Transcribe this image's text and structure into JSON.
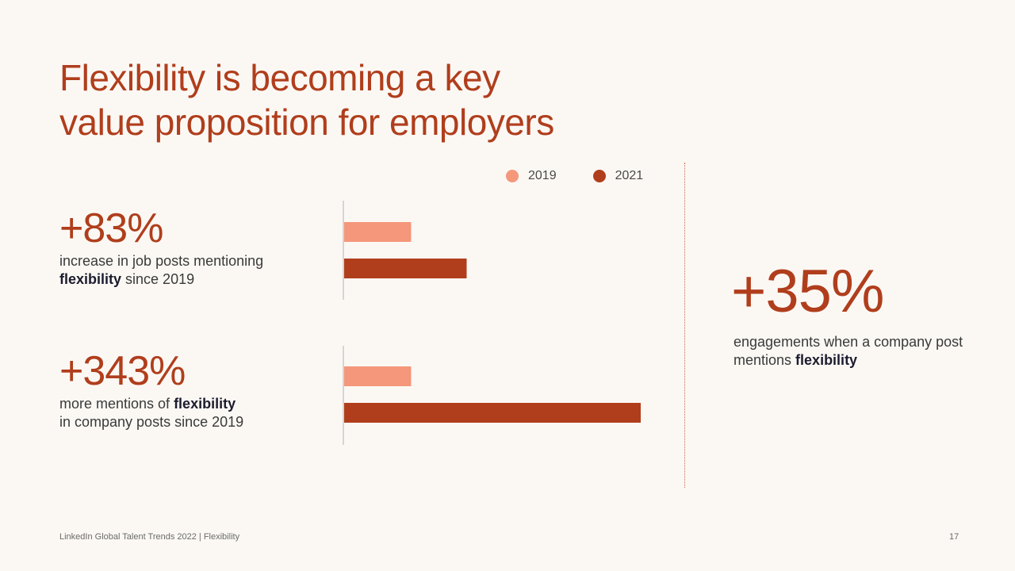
{
  "title_line1": "Flexibility is becoming a key",
  "title_line2": "value proposition for employers",
  "legend": [
    {
      "label": "2019",
      "color": "#f5977a"
    },
    {
      "label": "2021",
      "color": "#b03e1c"
    }
  ],
  "stats": [
    {
      "value": "+83%",
      "desc_pre": "increase in job posts mentioning",
      "desc_bold": "flexibility",
      "desc_post": " since 2019"
    },
    {
      "value": "+343%",
      "desc_pre": "more mentions of ",
      "desc_bold": "flexibility",
      "desc_post": "in company posts since 2019"
    }
  ],
  "right_stat": {
    "value": "+35%",
    "desc_pre": "engagements when a company post mentions ",
    "desc_bold": "flexibility"
  },
  "footer": "LinkedIn Global Talent Trends 2022  |  Flexibility",
  "page_number": "17",
  "chart_data": {
    "type": "bar",
    "orientation": "horizontal",
    "series_names": [
      "2019",
      "2021"
    ],
    "colors": [
      "#f5977a",
      "#b03e1c"
    ],
    "groups": [
      {
        "label": "+83%",
        "values": [
          100,
          183
        ]
      },
      {
        "label": "+343%",
        "values": [
          100,
          443
        ]
      }
    ],
    "xlim": [
      0,
      443
    ]
  }
}
